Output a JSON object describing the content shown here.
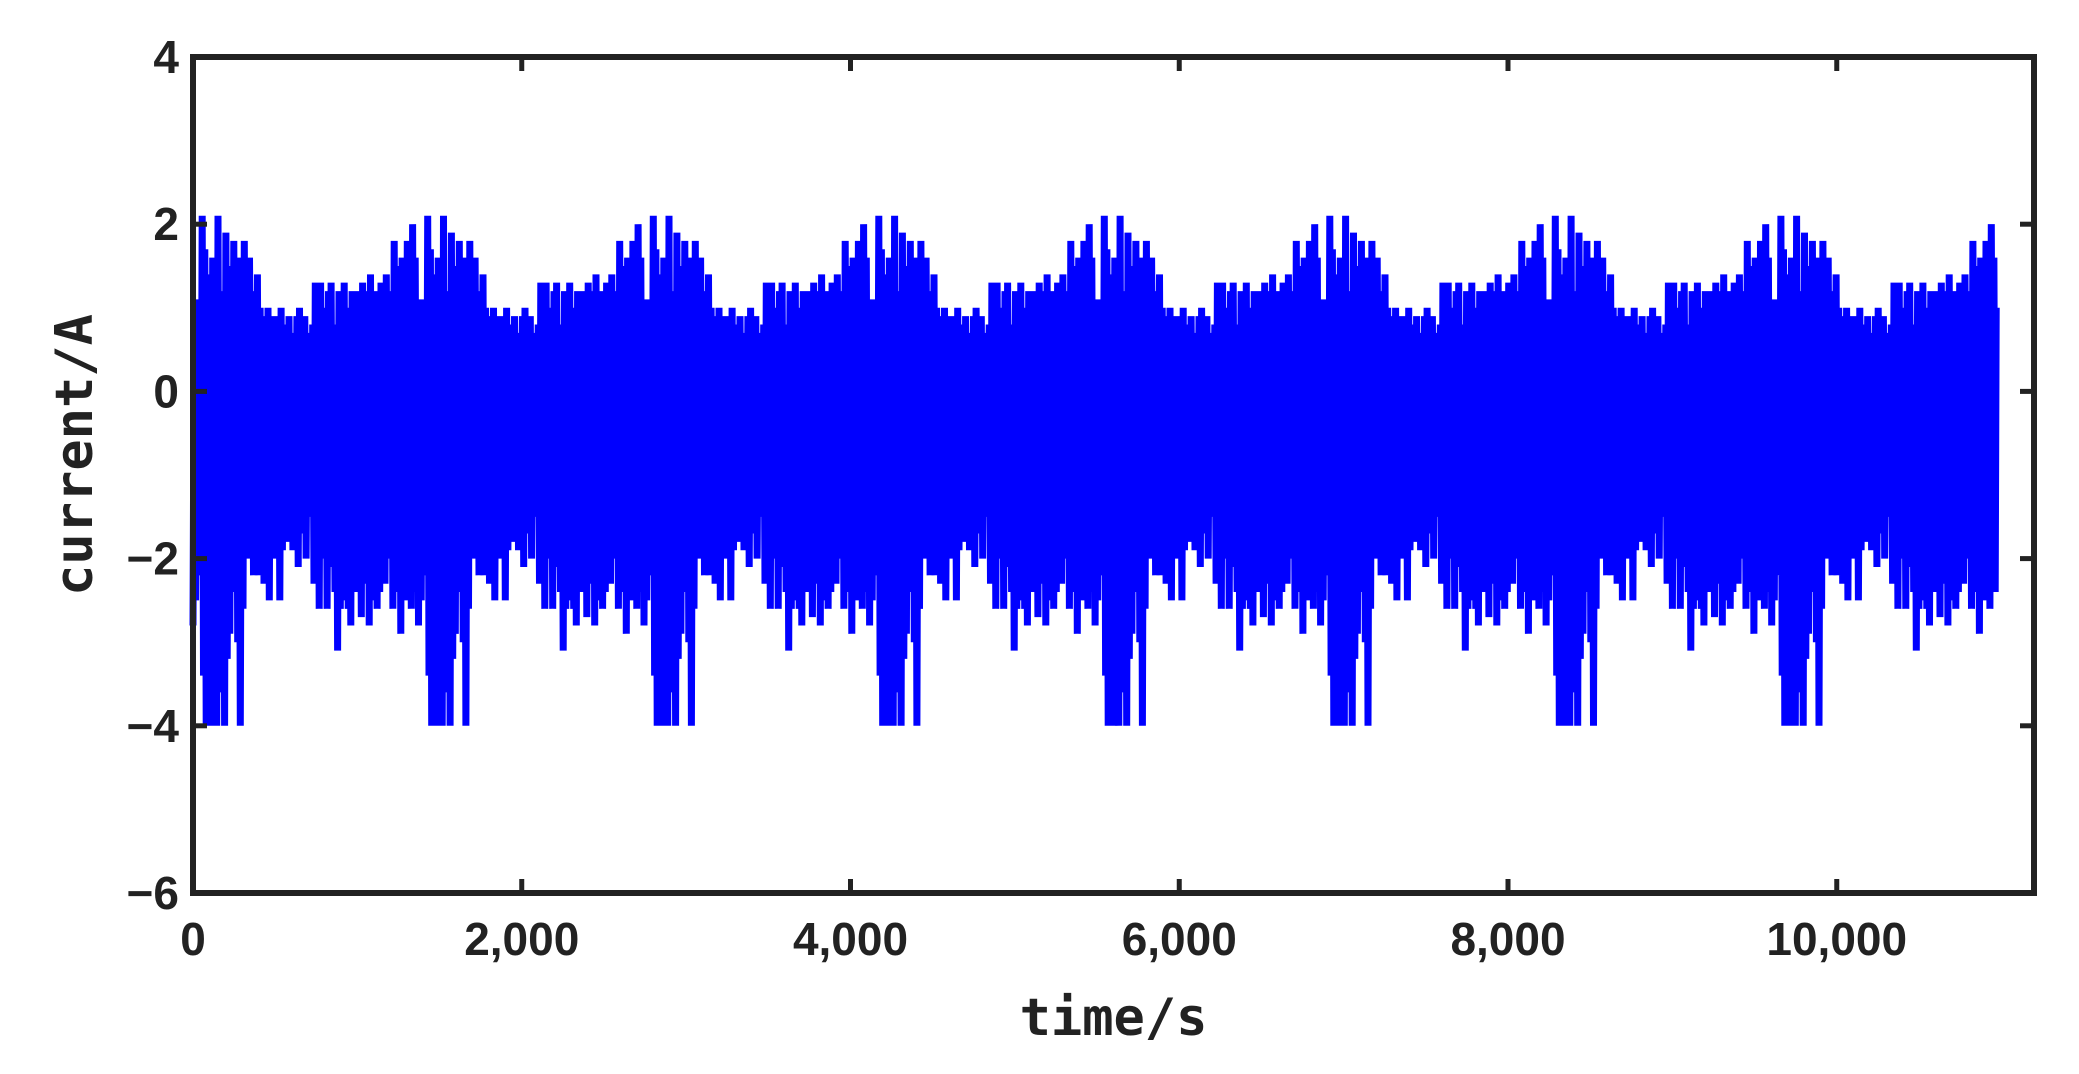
{
  "chart_data": {
    "type": "line",
    "title": "",
    "xlabel": "time/s",
    "ylabel": "current/A",
    "xlim": [
      0,
      11200
    ],
    "ylim": [
      -6,
      4
    ],
    "xticks": [
      0,
      2000,
      4000,
      6000,
      8000,
      10000
    ],
    "xtick_labels": [
      "0",
      "2,000",
      "4,000",
      "6,000",
      "8,000",
      "10,000"
    ],
    "yticks": [
      -6,
      -4,
      -2,
      0,
      2,
      4
    ],
    "ytick_labels": [
      "−6",
      "−4",
      "−2",
      "0",
      "2",
      "4"
    ],
    "grid": false,
    "legend": "none",
    "line_color": "#0000ff",
    "frame_color": "#222222",
    "cycle_period": 1372,
    "cycles": 8,
    "series": [
      {
        "cycle_points": [
          [
            0,
            -2.8
          ],
          [
            8,
            1.1
          ],
          [
            16,
            -2.5
          ],
          [
            24,
            1.1
          ],
          [
            32,
            -2.2
          ],
          [
            40,
            0.9
          ],
          [
            48,
            -2.0
          ],
          [
            56,
            2.1
          ],
          [
            64,
            -3.4
          ],
          [
            72,
            1.7
          ],
          [
            80,
            -4.0
          ],
          [
            88,
            1.4
          ],
          [
            96,
            -3.4
          ],
          [
            104,
            0.8
          ],
          [
            112,
            -4.0
          ],
          [
            120,
            1.6
          ],
          [
            128,
            -3.0
          ],
          [
            136,
            0.5
          ],
          [
            144,
            -4.0
          ],
          [
            152,
            2.1
          ],
          [
            160,
            -3.6
          ],
          [
            168,
            1.0
          ],
          [
            176,
            -2.7
          ],
          [
            184,
            1.2
          ],
          [
            192,
            -4.0
          ],
          [
            200,
            1.9
          ],
          [
            208,
            -3.2
          ],
          [
            216,
            0.8
          ],
          [
            224,
            -2.9
          ],
          [
            232,
            1.5
          ],
          [
            240,
            -1.8
          ],
          [
            248,
            1.8
          ],
          [
            256,
            -2.4
          ],
          [
            264,
            1.2
          ],
          [
            272,
            -3.0
          ],
          [
            280,
            1.6
          ],
          [
            288,
            -4.0
          ],
          [
            296,
            1.1
          ],
          [
            304,
            -2.6
          ],
          [
            312,
            1.8
          ],
          [
            320,
            -2.0
          ],
          [
            328,
            0.6
          ],
          [
            336,
            -2.0
          ],
          [
            344,
            1.6
          ],
          [
            352,
            -1.3
          ],
          [
            360,
            0.9
          ],
          [
            368,
            -2.2
          ],
          [
            376,
            1.2
          ],
          [
            384,
            -1.7
          ],
          [
            392,
            1.4
          ],
          [
            400,
            -2.2
          ],
          [
            408,
            1.0
          ],
          [
            416,
            -1.9
          ],
          [
            424,
            0.8
          ],
          [
            432,
            -2.3
          ],
          [
            440,
            0.9
          ],
          [
            448,
            -1.6
          ],
          [
            456,
            1.0
          ],
          [
            464,
            -2.5
          ],
          [
            472,
            0.6
          ],
          [
            480,
            -1.4
          ],
          [
            488,
            0.9
          ],
          [
            496,
            -2.0
          ],
          [
            504,
            0.6
          ],
          [
            512,
            -1.3
          ],
          [
            520,
            0.9
          ],
          [
            528,
            -2.5
          ],
          [
            536,
            1.0
          ],
          [
            544,
            -1.9
          ],
          [
            552,
            0.5
          ],
          [
            560,
            -1.4
          ],
          [
            568,
            0.8
          ],
          [
            576,
            -1.8
          ],
          [
            584,
            0.9
          ],
          [
            592,
            -1.3
          ],
          [
            600,
            0.7
          ],
          [
            608,
            -1.9
          ],
          [
            616,
            0.6
          ],
          [
            624,
            -1.5
          ],
          [
            632,
            0.9
          ],
          [
            640,
            -2.1
          ],
          [
            648,
            1.0
          ],
          [
            656,
            -1.7
          ],
          [
            664,
            0.6
          ],
          [
            672,
            -1.3
          ],
          [
            680,
            0.9
          ],
          [
            688,
            -2.0
          ],
          [
            696,
            0.7
          ],
          [
            704,
            -1.5
          ],
          [
            712,
            0.6
          ],
          [
            720,
            -1.2
          ],
          [
            728,
            0.8
          ],
          [
            736,
            -2.3
          ],
          [
            744,
            1.3
          ],
          [
            752,
            -1.8
          ],
          [
            760,
            0.9
          ],
          [
            768,
            -2.6
          ],
          [
            776,
            1.3
          ],
          [
            784,
            -2.0
          ],
          [
            792,
            0.7
          ],
          [
            800,
            -1.6
          ],
          [
            808,
            1.0
          ],
          [
            816,
            -2.6
          ],
          [
            824,
            1.2
          ],
          [
            832,
            -2.1
          ],
          [
            840,
            1.3
          ],
          [
            848,
            -1.8
          ],
          [
            856,
            0.6
          ],
          [
            864,
            -2.4
          ],
          [
            872,
            0.8
          ],
          [
            880,
            -3.1
          ],
          [
            888,
            1.2
          ],
          [
            896,
            -2.6
          ],
          [
            904,
            0.9
          ],
          [
            912,
            -2.1
          ],
          [
            920,
            1.3
          ],
          [
            928,
            -2.5
          ],
          [
            936,
            0.5
          ],
          [
            944,
            -2.6
          ],
          [
            952,
            1.0
          ],
          [
            960,
            -2.8
          ],
          [
            968,
            1.2
          ],
          [
            976,
            -2.1
          ],
          [
            984,
            0.9
          ],
          [
            992,
            -2.4
          ],
          [
            1000,
            1.2
          ],
          [
            1008,
            -2.0
          ],
          [
            1016,
            0.8
          ],
          [
            1024,
            -2.7
          ],
          [
            1032,
            1.3
          ],
          [
            1040,
            -2.3
          ],
          [
            1048,
            0.6
          ],
          [
            1056,
            -2.1
          ],
          [
            1064,
            1.2
          ],
          [
            1072,
            -2.8
          ],
          [
            1080,
            1.4
          ],
          [
            1088,
            -2.5
          ],
          [
            1096,
            0.9
          ],
          [
            1104,
            -2.2
          ],
          [
            1112,
            1.2
          ],
          [
            1120,
            -2.6
          ],
          [
            1128,
            1.0
          ],
          [
            1136,
            -2.4
          ],
          [
            1144,
            1.3
          ],
          [
            1152,
            -1.8
          ],
          [
            1160,
            0.7
          ],
          [
            1168,
            -2.3
          ],
          [
            1176,
            1.4
          ],
          [
            1184,
            -2.0
          ],
          [
            1192,
            0.8
          ],
          [
            1200,
            -1.5
          ],
          [
            1208,
            1.2
          ],
          [
            1216,
            -2.6
          ],
          [
            1224,
            1.8
          ],
          [
            1232,
            -2.0
          ],
          [
            1240,
            1.5
          ],
          [
            1248,
            -2.4
          ],
          [
            1256,
            1.1
          ],
          [
            1264,
            -2.9
          ],
          [
            1272,
            1.6
          ],
          [
            1280,
            -2.2
          ],
          [
            1288,
            1.2
          ],
          [
            1296,
            -2.5
          ],
          [
            1304,
            1.8
          ],
          [
            1312,
            -1.9
          ],
          [
            1320,
            1.3
          ],
          [
            1328,
            -2.6
          ],
          [
            1336,
            2.0
          ],
          [
            1344,
            -2.2
          ],
          [
            1352,
            1.6
          ],
          [
            1360,
            -2.4
          ],
          [
            1366,
            1.0
          ]
        ]
      }
    ]
  }
}
